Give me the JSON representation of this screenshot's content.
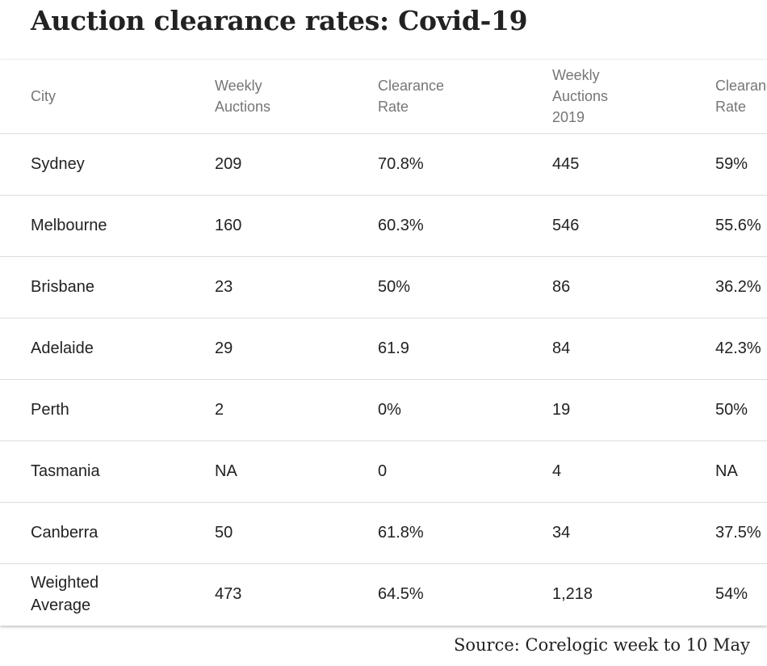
{
  "title": "Auction clearance rates: Covid-19",
  "table": {
    "headers": [
      [
        "City"
      ],
      [
        "Weekly",
        "Auctions"
      ],
      [
        "Clearance",
        "Rate"
      ],
      [
        "Weekly",
        "Auctions",
        "2019"
      ],
      [
        "Clearance",
        "Rate"
      ]
    ],
    "rows": [
      [
        "Sydney",
        "209",
        "70.8%",
        "445",
        "59%"
      ],
      [
        "Melbourne",
        "160",
        "60.3%",
        "546",
        "55.6%"
      ],
      [
        "Brisbane",
        "23",
        "50%",
        "86",
        "36.2%"
      ],
      [
        "Adelaide",
        "29",
        "61.9",
        "84",
        "42.3%"
      ],
      [
        "Perth",
        "2",
        "0%",
        "19",
        "50%"
      ],
      [
        "Tasmania",
        "NA",
        "0",
        "4",
        "NA"
      ],
      [
        "Canberra",
        "50",
        "61.8%",
        "34",
        "37.5%"
      ],
      [
        "Weighted Average",
        "473",
        "64.5%",
        "1,218",
        "54%"
      ]
    ]
  },
  "source": "Source: Corelogic week to 10 May"
}
